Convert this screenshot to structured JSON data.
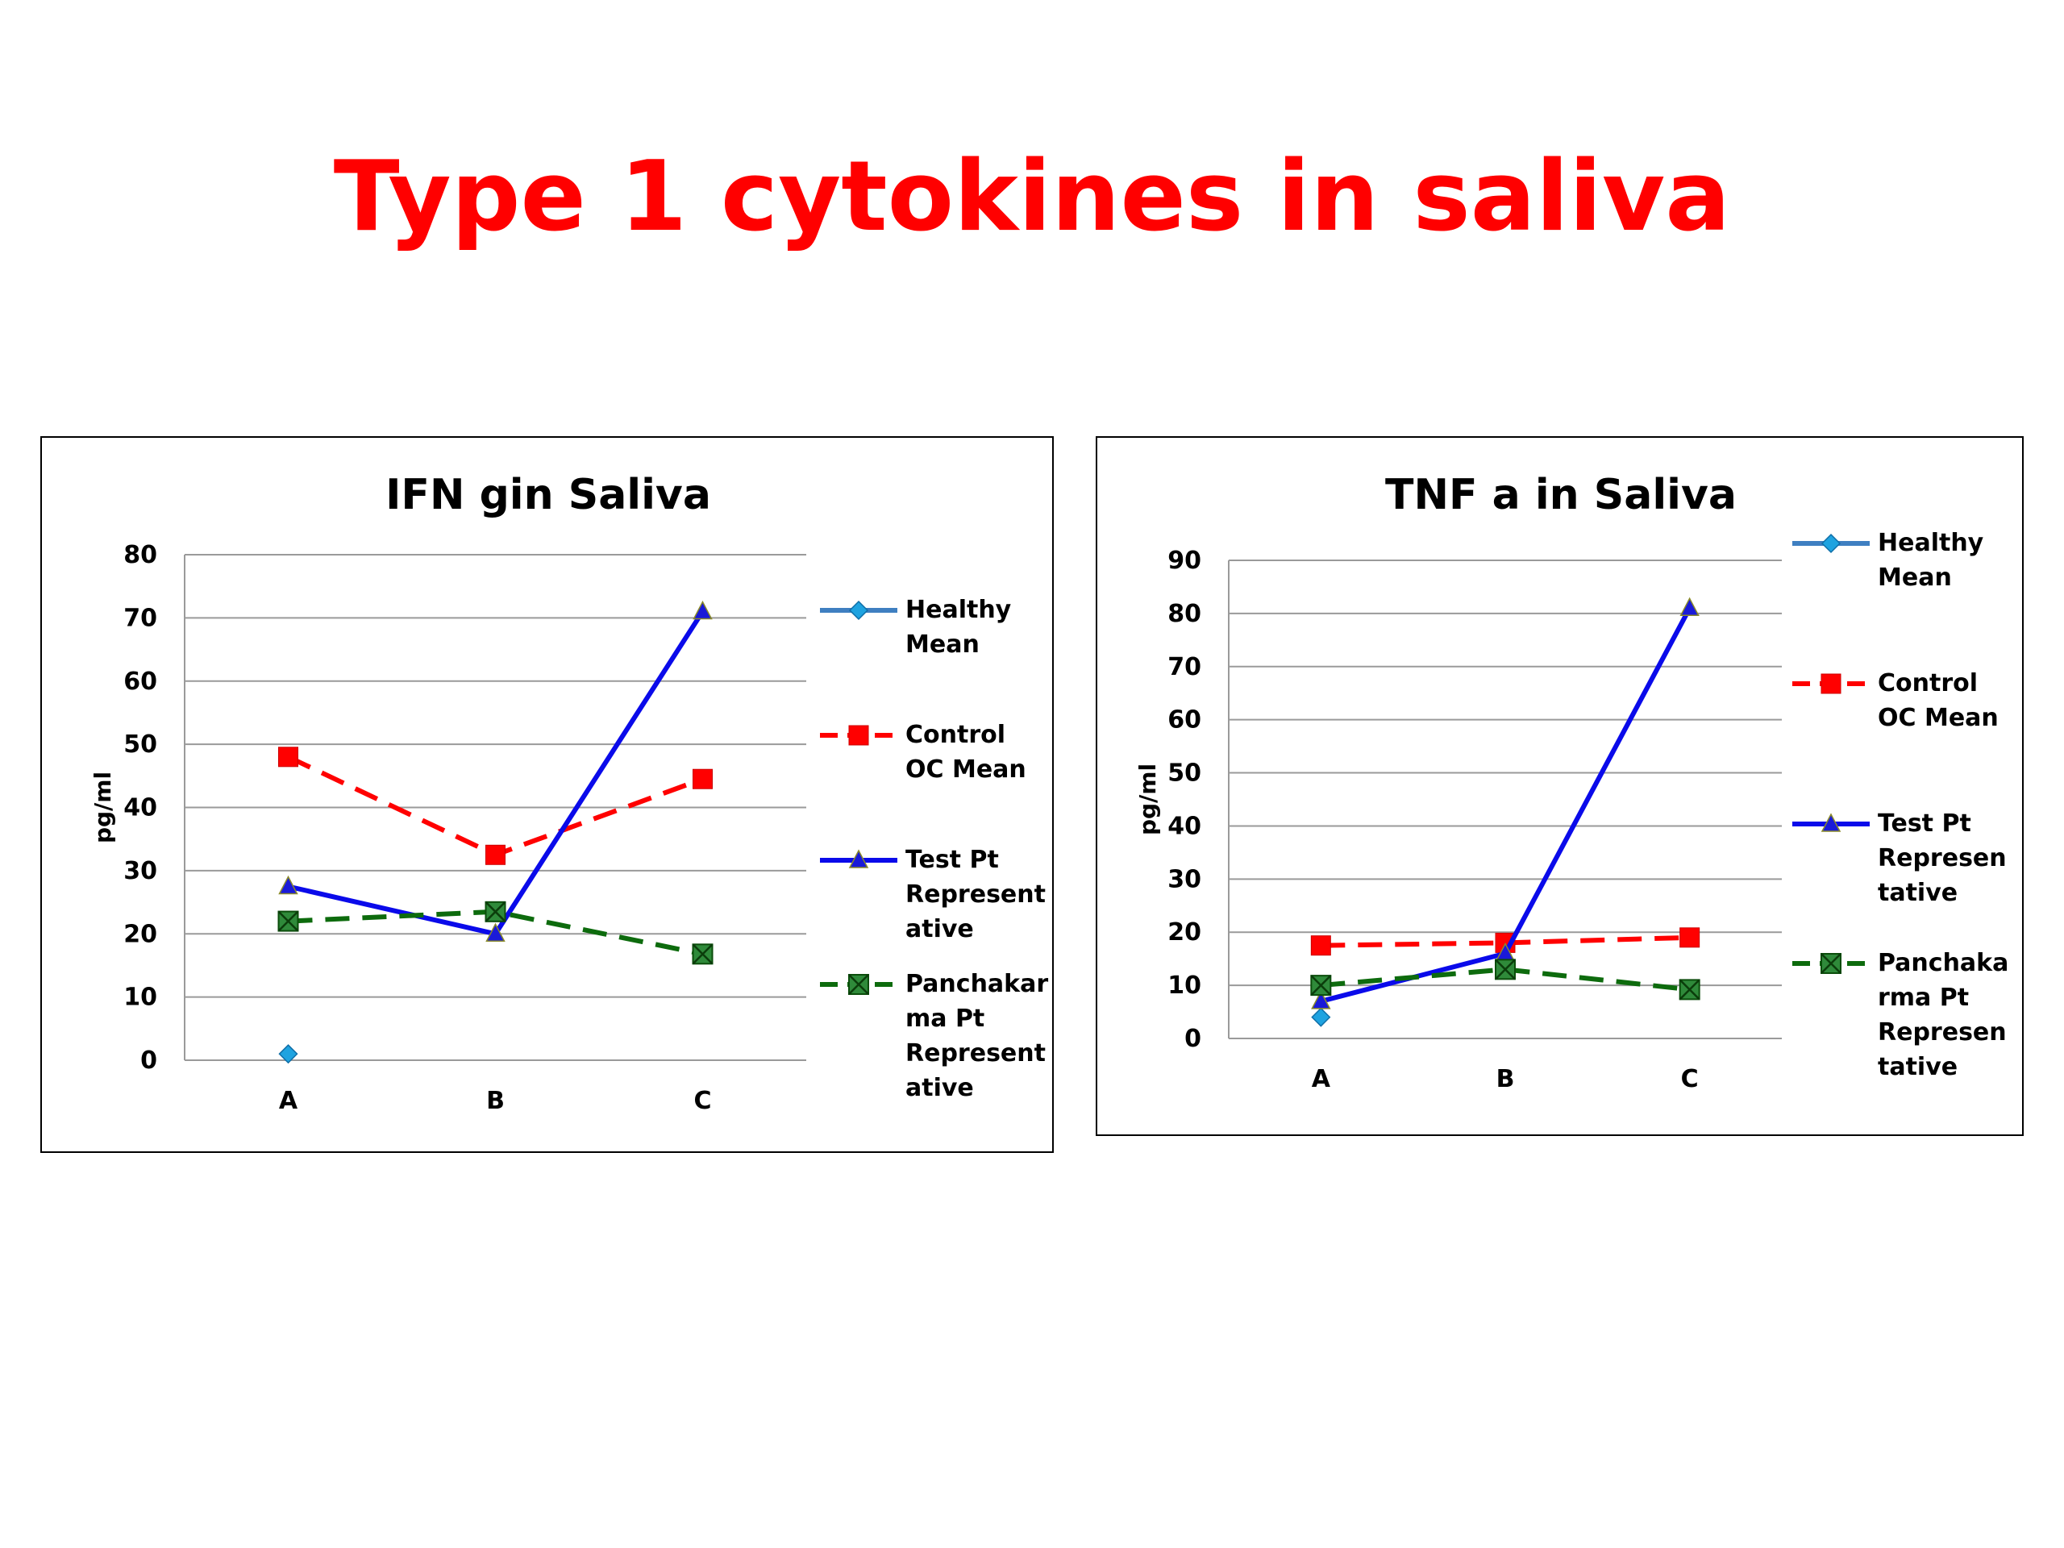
{
  "slide_title": "Type 1 cytokines in saliva",
  "series_styles": {
    "Healthy Mean": {
      "color": "#3f7fc1",
      "marker_color": "#1fa3e0",
      "marker": "diamond",
      "dash": "solid"
    },
    "Control OC Mean": {
      "color": "#ff0000",
      "marker_color": "#ff0000",
      "marker": "square",
      "dash": "dashed"
    },
    "Test Pt Representative": {
      "color": "#0a0aea",
      "marker_color": "#1a1ad8",
      "marker": "triangle",
      "dash": "solid"
    },
    "Panchakarma Pt Representative": {
      "color": "#0d6b0d",
      "marker_color": "#2e8b2e",
      "marker": "xsquare",
      "dash": "dashed"
    }
  },
  "chart_data": [
    {
      "type": "line",
      "title": "IFN gin Saliva",
      "ylabel": "pg/ml",
      "xlabel": "",
      "categories": [
        "A",
        "B",
        "C"
      ],
      "ylim": [
        0,
        80
      ],
      "yticks": [
        0,
        10,
        20,
        30,
        40,
        50,
        60,
        70,
        80
      ],
      "grid": true,
      "legend_position": "right",
      "series": [
        {
          "name": "Healthy Mean",
          "legend_lines": [
            "Healthy",
            "Mean"
          ],
          "values": [
            1,
            null,
            null
          ]
        },
        {
          "name": "Control OC Mean",
          "legend_lines": [
            "Control",
            "OC Mean"
          ],
          "values": [
            48,
            32.5,
            44.5
          ]
        },
        {
          "name": "Test Pt Representative",
          "legend_lines": [
            "Test Pt",
            "Represent",
            "ative"
          ],
          "values": [
            27.5,
            20,
            71
          ]
        },
        {
          "name": "Panchakarma Pt Representative",
          "legend_lines": [
            "Panchakar",
            "ma Pt",
            "Represent",
            "ative"
          ],
          "values": [
            22,
            23.5,
            16.8
          ]
        }
      ]
    },
    {
      "type": "line",
      "title": "TNF a in Saliva",
      "ylabel": "pg/ml",
      "xlabel": "",
      "categories": [
        "A",
        "B",
        "C"
      ],
      "ylim": [
        0,
        90
      ],
      "yticks": [
        0,
        10,
        20,
        30,
        40,
        50,
        60,
        70,
        80,
        90
      ],
      "grid": true,
      "legend_position": "right",
      "series": [
        {
          "name": "Healthy Mean",
          "legend_lines": [
            "Healthy",
            "Mean"
          ],
          "values": [
            4,
            null,
            null
          ]
        },
        {
          "name": "Control OC Mean",
          "legend_lines": [
            "Control",
            "OC Mean"
          ],
          "values": [
            17.5,
            18,
            19
          ]
        },
        {
          "name": "Test Pt Representative",
          "legend_lines": [
            "Test Pt",
            "Represen",
            "tative"
          ],
          "values": [
            7,
            16,
            81
          ]
        },
        {
          "name": "Panchakarma Pt Representative",
          "legend_lines": [
            "Panchaka",
            "rma Pt",
            "Represen",
            "tative"
          ],
          "values": [
            10,
            13,
            9.2
          ]
        }
      ]
    }
  ]
}
